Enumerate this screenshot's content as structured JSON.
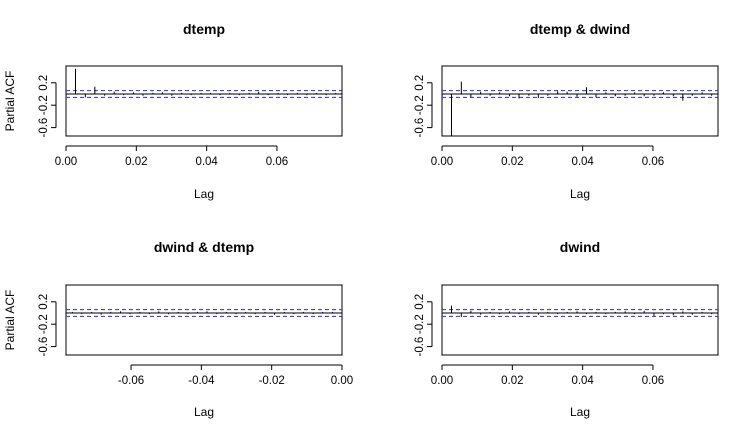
{
  "chart_data": [
    {
      "type": "bar",
      "title": "dtemp",
      "xlabel": "Lag",
      "ylabel": "Partial ACF",
      "xlim": [
        0,
        0.0785
      ],
      "ylim": [
        -0.75,
        0.5
      ],
      "xticks": [
        0.0,
        0.02,
        0.04,
        0.06
      ],
      "xtick_labels": [
        "0.00",
        "0.02",
        "0.04",
        "0.06"
      ],
      "yticks": [
        -0.6,
        -0.2,
        0.2
      ],
      "ytick_labels": [
        "-0.6",
        "-0.2",
        "0.2"
      ],
      "confidence_bound": 0.06,
      "x": [
        0.0027,
        0.0055,
        0.0082,
        0.011,
        0.0137,
        0.0164,
        0.0192,
        0.0219,
        0.0247,
        0.0274,
        0.0301,
        0.0329,
        0.0356,
        0.0384,
        0.0411,
        0.0438,
        0.0466,
        0.0493,
        0.0521,
        0.0548,
        0.0575,
        0.0603,
        0.063,
        0.0658,
        0.0685,
        0.0712,
        0.074,
        0.0767
      ],
      "values": [
        0.45,
        -0.06,
        0.13,
        -0.03,
        0.04,
        -0.02,
        0.03,
        -0.03,
        0.02,
        0.03,
        -0.03,
        0.02,
        -0.02,
        0.02,
        0.02,
        -0.02,
        0.02,
        -0.02,
        0.02,
        0.04,
        -0.02,
        0.02,
        -0.02,
        0.02,
        -0.02,
        0.02,
        -0.02,
        0.02
      ]
    },
    {
      "type": "bar",
      "title": "dtemp & dwind",
      "xlabel": "Lag",
      "ylabel": "",
      "xlim": [
        0,
        0.0785
      ],
      "ylim": [
        -0.75,
        0.5
      ],
      "xticks": [
        0.0,
        0.02,
        0.04,
        0.06
      ],
      "xtick_labels": [
        "0.00",
        "0.02",
        "0.04",
        "0.06"
      ],
      "yticks": [
        -0.6,
        -0.2,
        0.2
      ],
      "ytick_labels": [
        "-0.6",
        "-0.2",
        "0.2"
      ],
      "confidence_bound": 0.06,
      "x": [
        0.0027,
        0.0055,
        0.0082,
        0.011,
        0.0137,
        0.0164,
        0.0192,
        0.0219,
        0.0247,
        0.0274,
        0.0301,
        0.0329,
        0.0356,
        0.0384,
        0.0411,
        0.0438,
        0.0466,
        0.0493,
        0.0521,
        0.0548,
        0.0575,
        0.0603,
        0.063,
        0.0658,
        0.0685,
        0.0712,
        0.074,
        0.0767
      ],
      "values": [
        -0.75,
        0.22,
        -0.06,
        0.04,
        -0.03,
        0.03,
        -0.04,
        -0.08,
        -0.03,
        -0.07,
        -0.03,
        0.05,
        0.04,
        -0.05,
        0.12,
        -0.06,
        0.03,
        -0.04,
        -0.03,
        0.03,
        -0.04,
        -0.03,
        0.03,
        -0.04,
        -0.12,
        -0.03,
        0.03,
        -0.03
      ]
    },
    {
      "type": "bar",
      "title": "dwind & dtemp",
      "xlabel": "Lag",
      "ylabel": "Partial ACF",
      "xlim": [
        -0.0785,
        0
      ],
      "ylim": [
        -0.75,
        0.5
      ],
      "xticks": [
        -0.06,
        -0.04,
        -0.02,
        0.0
      ],
      "xtick_labels": [
        "-0.06",
        "-0.04",
        "-0.02",
        "0.00"
      ],
      "yticks": [
        -0.6,
        -0.2,
        0.2
      ],
      "ytick_labels": [
        "-0.6",
        "-0.2",
        "0.2"
      ],
      "confidence_bound": 0.06,
      "x": [
        -0.0767,
        -0.074,
        -0.0712,
        -0.0685,
        -0.0658,
        -0.063,
        -0.0603,
        -0.0575,
        -0.0548,
        -0.0521,
        -0.0493,
        -0.0466,
        -0.0438,
        -0.0411,
        -0.0384,
        -0.0356,
        -0.0329,
        -0.0301,
        -0.0274,
        -0.0247,
        -0.0219,
        -0.0192,
        -0.0164,
        -0.0137,
        -0.011,
        -0.0082,
        -0.0055,
        -0.0027
      ],
      "values": [
        0.02,
        -0.02,
        0.02,
        -0.03,
        0.02,
        0.03,
        -0.02,
        0.02,
        -0.02,
        0.03,
        -0.02,
        0.02,
        -0.02,
        0.02,
        0.03,
        -0.02,
        0.02,
        -0.02,
        0.02,
        -0.02,
        0.02,
        -0.03,
        0.02,
        -0.02,
        0.02,
        -0.02,
        0.02,
        0.02
      ]
    },
    {
      "type": "bar",
      "title": "dwind",
      "xlabel": "Lag",
      "ylabel": "",
      "xlim": [
        0,
        0.0785
      ],
      "ylim": [
        -0.75,
        0.5
      ],
      "xticks": [
        0.0,
        0.02,
        0.04,
        0.06
      ],
      "xtick_labels": [
        "0.00",
        "0.02",
        "0.04",
        "0.06"
      ],
      "yticks": [
        -0.6,
        -0.2,
        0.2
      ],
      "ytick_labels": [
        "-0.6",
        "-0.2",
        "0.2"
      ],
      "confidence_bound": 0.06,
      "x": [
        0.0027,
        0.0055,
        0.0082,
        0.011,
        0.0137,
        0.0164,
        0.0192,
        0.0219,
        0.0247,
        0.0274,
        0.0301,
        0.0329,
        0.0356,
        0.0384,
        0.0411,
        0.0438,
        0.0466,
        0.0493,
        0.0521,
        0.0548,
        0.0575,
        0.0603,
        0.063,
        0.0658,
        0.0685,
        0.0712,
        0.074,
        0.0767
      ],
      "values": [
        0.13,
        -0.07,
        0.04,
        -0.03,
        0.02,
        -0.02,
        0.03,
        -0.02,
        0.02,
        -0.03,
        0.02,
        -0.02,
        0.02,
        0.03,
        -0.02,
        0.02,
        -0.02,
        0.02,
        0.03,
        -0.02,
        0.04,
        -0.05,
        -0.02,
        -0.04,
        0.03,
        -0.03,
        0.02,
        -0.02
      ]
    }
  ]
}
